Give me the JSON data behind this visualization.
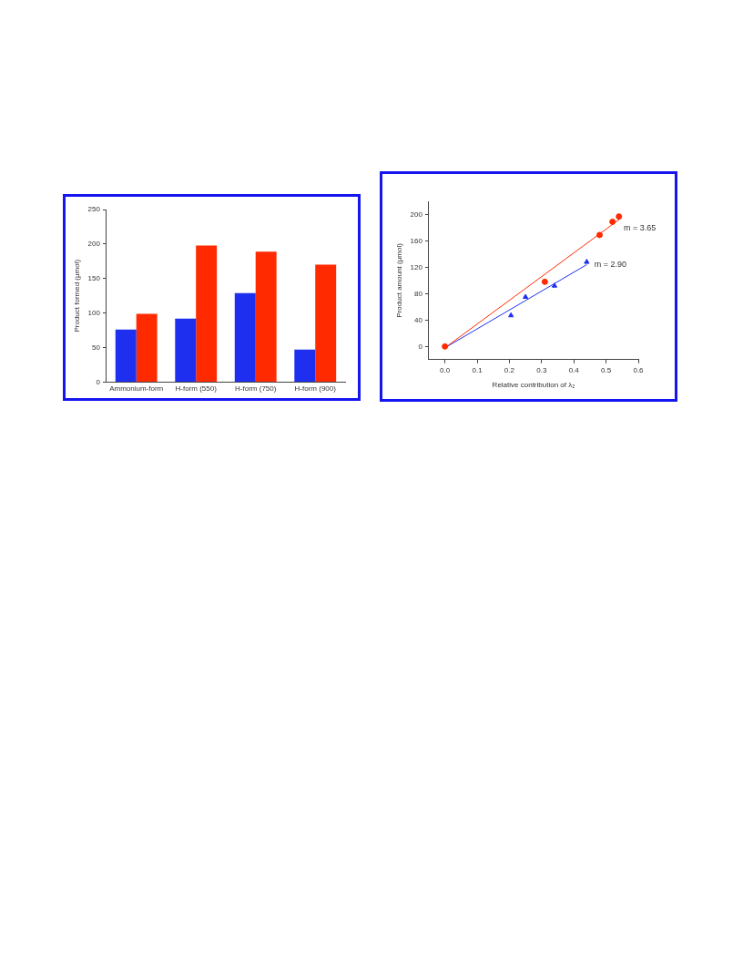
{
  "chart_data": [
    {
      "type": "bar",
      "ylabel": "Product formed (μmol)",
      "categories": [
        "Ammonium-form",
        "H-form (550)",
        "H-form (750)",
        "H-form (900)"
      ],
      "series": [
        {
          "color": "#1f2ff0",
          "values": [
            76,
            92,
            129,
            47
          ]
        },
        {
          "color": "#ff2a00",
          "values": [
            99,
            198,
            189,
            170
          ]
        }
      ],
      "ylim": [
        0,
        250
      ],
      "yticks": [
        0,
        50,
        100,
        150,
        200,
        250
      ],
      "grid": false,
      "legend": false
    },
    {
      "type": "scatter",
      "xlabel": "Relative contribution of λ₂",
      "ylabel": "Product amount (μmol)",
      "series": [
        {
          "color": "#ff2a00",
          "marker": "circle",
          "x": [
            0,
            0.31,
            0.48,
            0.52,
            0.54
          ],
          "values": [
            0,
            98,
            169,
            189,
            197
          ]
        },
        {
          "color": "#1f2ff0",
          "marker": "triangle",
          "x": [
            0.205,
            0.25,
            0.34,
            0.44
          ],
          "values": [
            47,
            75,
            92,
            128
          ]
        },
        {
          "type": "line",
          "color": "#ff2a00",
          "x": [
            0,
            0.545
          ],
          "values": [
            -2,
            194
          ]
        },
        {
          "type": "line",
          "color": "#1f2ff0",
          "x": [
            0,
            0.44
          ],
          "values": [
            -2,
            124
          ]
        }
      ],
      "xlim": [
        -0.05,
        0.6
      ],
      "xticks": [
        {
          "value": 0,
          "label": "0.0"
        },
        0.1,
        0.2,
        0.3,
        0.4,
        0.5,
        0.6
      ],
      "ylim": [
        -20,
        220
      ],
      "yticks": [
        0,
        40,
        80,
        120,
        160,
        200
      ],
      "grid": false,
      "legend": false,
      "annotations": [
        "m = 3.65",
        "m = 2.90"
      ]
    }
  ]
}
